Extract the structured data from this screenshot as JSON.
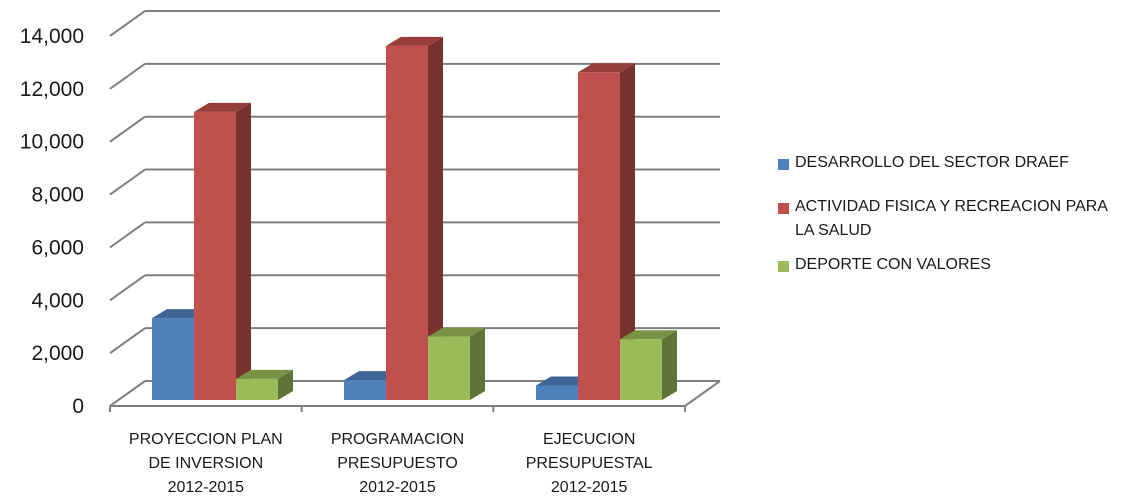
{
  "chart_data": {
    "type": "bar",
    "categories": [
      [
        "PROYECCION PLAN",
        "DE INVERSION",
        "2012-2015"
      ],
      [
        "PROGRAMACION",
        "PRESUPUESTO",
        "2012-2015"
      ],
      [
        "EJECUCION",
        "PRESUPUESTAL",
        "2012-2015"
      ]
    ],
    "series": [
      {
        "name": "DESARROLLO DEL SECTOR DRAEF",
        "values": [
          3100,
          750,
          550
        ],
        "color": "#4F81BD"
      },
      {
        "name": "ACTIVIDAD FISICA Y RECREACION PARA LA SALUD",
        "values": [
          10900,
          13400,
          12400
        ],
        "color": "#C0504D"
      },
      {
        "name": "DEPORTE CON VALORES",
        "values": [
          800,
          2400,
          2300
        ],
        "color": "#9BBB59"
      }
    ],
    "yticks": [
      "0",
      "2,000",
      "4,000",
      "6,000",
      "8,000",
      "10,000",
      "12,000",
      "14,000"
    ],
    "ylim": [
      0,
      14000
    ],
    "legend_position": "right",
    "grid": true,
    "three_d": true
  }
}
